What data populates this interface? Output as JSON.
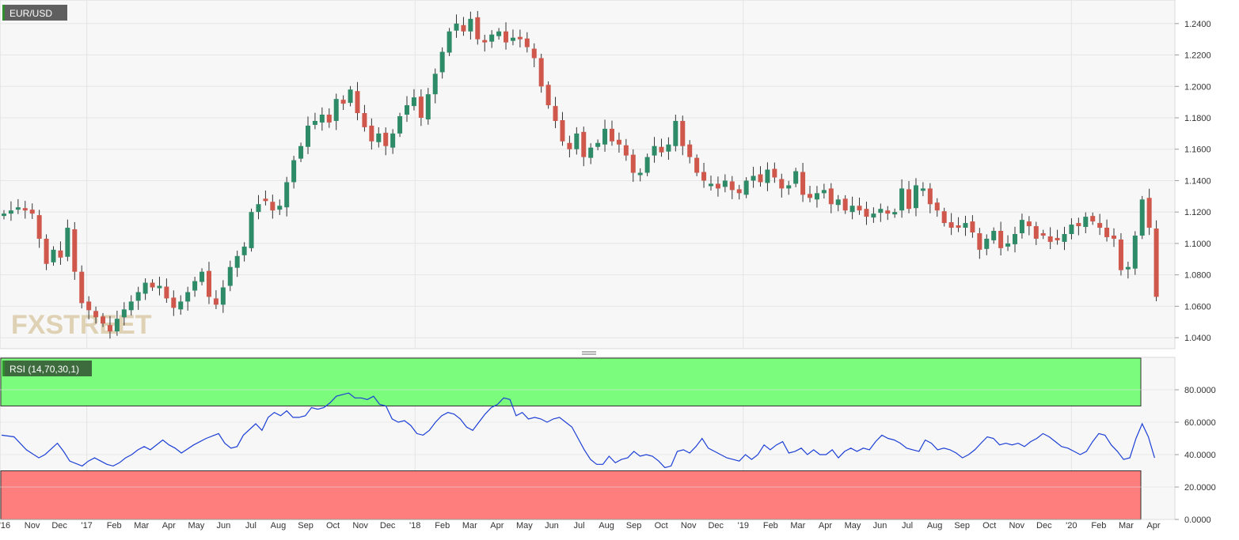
{
  "chart_data": [
    {
      "type": "candlestick",
      "title": "EUR/USD",
      "watermark": "FXSTREET",
      "y_ticks": [
        "1.0400",
        "1.0600",
        "1.0800",
        "1.1000",
        "1.1200",
        "1.1400",
        "1.1600",
        "1.1800",
        "1.2000",
        "1.2200",
        "1.2400"
      ],
      "ylim": [
        1.033,
        1.255
      ],
      "x_tick_labels": [
        "'16",
        "Nov",
        "Dec",
        "'17",
        "Feb",
        "Mar",
        "Apr",
        "May",
        "Jun",
        "Jul",
        "Aug",
        "Sep",
        "Oct",
        "Nov",
        "Dec",
        "'18",
        "Feb",
        "Mar",
        "Apr",
        "May",
        "Jun",
        "Jul",
        "Aug",
        "Sep",
        "Oct",
        "Nov",
        "Dec",
        "'19",
        "Feb",
        "Mar",
        "Apr",
        "May",
        "Jun",
        "Jul",
        "Aug",
        "Sep",
        "Oct",
        "Nov",
        "Dec",
        "'20",
        "Feb",
        "Mar",
        "Apr"
      ],
      "up_color": "#2e8b68",
      "down_color": "#d0574b",
      "close_path": [
        [
          0,
          1.119
        ],
        [
          2,
          1.123
        ],
        [
          4,
          1.119
        ],
        [
          6,
          1.087
        ],
        [
          7,
          1.096
        ],
        [
          8,
          1.091
        ],
        [
          9,
          1.11
        ],
        [
          10,
          1.082
        ],
        [
          11,
          1.062
        ],
        [
          13,
          1.053
        ],
        [
          14,
          1.049
        ],
        [
          15,
          1.044
        ],
        [
          16,
          1.052
        ],
        [
          17,
          1.058
        ],
        [
          18,
          1.063
        ],
        [
          19,
          1.069
        ],
        [
          20,
          1.075
        ],
        [
          21,
          1.072
        ],
        [
          22,
          1.073
        ],
        [
          23,
          1.065
        ],
        [
          24,
          1.059
        ],
        [
          25,
          1.063
        ],
        [
          26,
          1.069
        ],
        [
          27,
          1.076
        ],
        [
          28,
          1.082
        ],
        [
          29,
          1.066
        ],
        [
          30,
          1.061
        ],
        [
          31,
          1.072
        ],
        [
          32,
          1.085
        ],
        [
          33,
          1.092
        ],
        [
          34,
          1.098
        ],
        [
          35,
          1.12
        ],
        [
          36,
          1.125
        ],
        [
          37,
          1.127
        ],
        [
          38,
          1.121
        ],
        [
          39,
          1.124
        ],
        [
          40,
          1.139
        ],
        [
          41,
          1.153
        ],
        [
          42,
          1.162
        ],
        [
          43,
          1.175
        ],
        [
          44,
          1.178
        ],
        [
          45,
          1.182
        ],
        [
          46,
          1.177
        ],
        [
          47,
          1.192
        ],
        [
          48,
          1.189
        ],
        [
          49,
          1.198
        ],
        [
          50,
          1.183
        ],
        [
          51,
          1.174
        ],
        [
          52,
          1.165
        ],
        [
          53,
          1.17
        ],
        [
          54,
          1.162
        ],
        [
          55,
          1.17
        ],
        [
          56,
          1.181
        ],
        [
          57,
          1.188
        ],
        [
          58,
          1.193
        ],
        [
          59,
          1.18
        ],
        [
          60,
          1.195
        ],
        [
          61,
          1.208
        ],
        [
          62,
          1.222
        ],
        [
          63,
          1.235
        ],
        [
          64,
          1.24
        ],
        [
          65,
          1.235
        ],
        [
          66,
          1.243
        ],
        [
          67,
          1.23
        ],
        [
          68,
          1.228
        ],
        [
          69,
          1.233
        ],
        [
          70,
          1.235
        ],
        [
          71,
          1.228
        ],
        [
          72,
          1.231
        ],
        [
          73,
          1.23
        ],
        [
          74,
          1.225
        ],
        [
          75,
          1.218
        ],
        [
          76,
          1.2
        ],
        [
          77,
          1.188
        ],
        [
          78,
          1.178
        ],
        [
          79,
          1.165
        ],
        [
          80,
          1.16
        ],
        [
          81,
          1.17
        ],
        [
          82,
          1.155
        ],
        [
          83,
          1.161
        ],
        [
          84,
          1.164
        ],
        [
          85,
          1.173
        ],
        [
          86,
          1.165
        ],
        [
          87,
          1.163
        ],
        [
          88,
          1.156
        ],
        [
          89,
          1.145
        ],
        [
          90,
          1.145
        ],
        [
          91,
          1.155
        ],
        [
          92,
          1.162
        ],
        [
          93,
          1.158
        ],
        [
          94,
          1.163
        ],
        [
          95,
          1.178
        ],
        [
          96,
          1.162
        ],
        [
          97,
          1.155
        ],
        [
          98,
          1.145
        ],
        [
          99,
          1.14
        ],
        [
          100,
          1.138
        ],
        [
          101,
          1.135
        ],
        [
          102,
          1.14
        ],
        [
          103,
          1.134
        ],
        [
          104,
          1.132
        ],
        [
          105,
          1.14
        ],
        [
          106,
          1.143
        ],
        [
          107,
          1.139
        ],
        [
          108,
          1.147
        ],
        [
          109,
          1.142
        ],
        [
          110,
          1.135
        ],
        [
          111,
          1.137
        ],
        [
          112,
          1.146
        ],
        [
          113,
          1.131
        ],
        [
          114,
          1.129
        ],
        [
          115,
          1.132
        ],
        [
          116,
          1.134
        ],
        [
          117,
          1.125
        ],
        [
          118,
          1.128
        ],
        [
          119,
          1.121
        ],
        [
          120,
          1.124
        ],
        [
          121,
          1.121
        ],
        [
          122,
          1.117
        ],
        [
          123,
          1.119
        ],
        [
          124,
          1.122
        ],
        [
          125,
          1.119
        ],
        [
          126,
          1.12
        ],
        [
          127,
          1.135
        ],
        [
          128,
          1.122
        ],
        [
          129,
          1.137
        ],
        [
          130,
          1.135
        ],
        [
          131,
          1.125
        ],
        [
          132,
          1.121
        ],
        [
          133,
          1.113
        ],
        [
          134,
          1.11
        ],
        [
          135,
          1.11
        ],
        [
          136,
          1.113
        ],
        [
          137,
          1.107
        ],
        [
          138,
          1.096
        ],
        [
          139,
          1.103
        ],
        [
          140,
          1.108
        ],
        [
          141,
          1.097
        ],
        [
          142,
          1.1
        ],
        [
          143,
          1.106
        ],
        [
          144,
          1.115
        ],
        [
          145,
          1.111
        ],
        [
          146,
          1.103
        ],
        [
          147,
          1.105
        ],
        [
          148,
          1.101
        ],
        [
          149,
          1.102
        ],
        [
          150,
          1.106
        ],
        [
          151,
          1.112
        ],
        [
          152,
          1.111
        ],
        [
          153,
          1.117
        ],
        [
          154,
          1.114
        ],
        [
          155,
          1.11
        ],
        [
          156,
          1.104
        ],
        [
          157,
          1.103
        ],
        [
          158,
          1.083
        ],
        [
          159,
          1.085
        ],
        [
          160,
          1.105
        ],
        [
          161,
          1.128
        ],
        [
          162,
          1.11
        ],
        [
          163,
          1.066
        ]
      ],
      "pane_sizes": [
        1,
        0.46
      ]
    },
    {
      "type": "line",
      "legend": "RSI (14,70,30,1)",
      "y_ticks": [
        "0.0000",
        "20.0000",
        "40.0000",
        "60.0000",
        "80.0000"
      ],
      "ylim": [
        0,
        100
      ],
      "overbought": 70,
      "oversold": 30,
      "overbought_color": "#7cfc7c",
      "oversold_color": "#fe7d7d",
      "line_color": "#1c3fd6",
      "values_path": [
        [
          0,
          52
        ],
        [
          2,
          51
        ],
        [
          4,
          43
        ],
        [
          6,
          38
        ],
        [
          7,
          40
        ],
        [
          9,
          47
        ],
        [
          10,
          42
        ],
        [
          11,
          36
        ],
        [
          13,
          33
        ],
        [
          14,
          36
        ],
        [
          15,
          38
        ],
        [
          16,
          36
        ],
        [
          17,
          34
        ],
        [
          18,
          33
        ],
        [
          19,
          35
        ],
        [
          20,
          38
        ],
        [
          21,
          40
        ],
        [
          22,
          43
        ],
        [
          23,
          45
        ],
        [
          24,
          43
        ],
        [
          26,
          49
        ],
        [
          27,
          46
        ],
        [
          28,
          44
        ],
        [
          29,
          41
        ],
        [
          31,
          46
        ],
        [
          33,
          50
        ],
        [
          35,
          53
        ],
        [
          36,
          47
        ],
        [
          37,
          44
        ],
        [
          38,
          45
        ],
        [
          39,
          52
        ],
        [
          41,
          59
        ],
        [
          42,
          55
        ],
        [
          43,
          63
        ],
        [
          44,
          66
        ],
        [
          45,
          64
        ],
        [
          46,
          67
        ],
        [
          47,
          63
        ],
        [
          48,
          63
        ],
        [
          49,
          64
        ],
        [
          50,
          69
        ],
        [
          51,
          68
        ],
        [
          52,
          69
        ],
        [
          53,
          72
        ],
        [
          54,
          76
        ],
        [
          55,
          77
        ],
        [
          56,
          78
        ],
        [
          57,
          75
        ],
        [
          58,
          75
        ],
        [
          59,
          74
        ],
        [
          60,
          76
        ],
        [
          61,
          71
        ],
        [
          62,
          70
        ],
        [
          63,
          62
        ],
        [
          64,
          60
        ],
        [
          65,
          61
        ],
        [
          66,
          58
        ],
        [
          67,
          53
        ],
        [
          68,
          52
        ],
        [
          69,
          55
        ],
        [
          70,
          60
        ],
        [
          71,
          64
        ],
        [
          72,
          66
        ],
        [
          73,
          65
        ],
        [
          74,
          62
        ],
        [
          75,
          57
        ],
        [
          76,
          55
        ],
        [
          77,
          60
        ],
        [
          78,
          65
        ],
        [
          79,
          69
        ],
        [
          80,
          71
        ],
        [
          81,
          75
        ],
        [
          82,
          74
        ],
        [
          83,
          64
        ],
        [
          84,
          66
        ],
        [
          85,
          62
        ],
        [
          86,
          63
        ],
        [
          87,
          62
        ],
        [
          88,
          60
        ],
        [
          89,
          62
        ],
        [
          90,
          63
        ],
        [
          91,
          60
        ],
        [
          92,
          57
        ],
        [
          93,
          50
        ],
        [
          94,
          43
        ],
        [
          95,
          37
        ],
        [
          96,
          34
        ],
        [
          97,
          34
        ],
        [
          98,
          39
        ],
        [
          99,
          35
        ],
        [
          100,
          37
        ],
        [
          101,
          38
        ],
        [
          102,
          42
        ],
        [
          103,
          39
        ],
        [
          104,
          40
        ],
        [
          105,
          39
        ],
        [
          106,
          36
        ],
        [
          107,
          32
        ],
        [
          108,
          33
        ],
        [
          109,
          42
        ],
        [
          110,
          43
        ],
        [
          111,
          41
        ],
        [
          112,
          45
        ],
        [
          113,
          50
        ],
        [
          114,
          44
        ],
        [
          115,
          42
        ],
        [
          116,
          40
        ],
        [
          117,
          38
        ],
        [
          118,
          37
        ],
        [
          119,
          36
        ],
        [
          120,
          40
        ],
        [
          121,
          37
        ],
        [
          122,
          40
        ],
        [
          123,
          46
        ],
        [
          124,
          43
        ],
        [
          125,
          46
        ],
        [
          126,
          48
        ],
        [
          127,
          41
        ],
        [
          128,
          42
        ],
        [
          129,
          44
        ],
        [
          130,
          40
        ],
        [
          131,
          43
        ],
        [
          132,
          40
        ],
        [
          133,
          40
        ],
        [
          134,
          43
        ],
        [
          135,
          38
        ],
        [
          136,
          42
        ],
        [
          137,
          44
        ],
        [
          138,
          42
        ],
        [
          139,
          44
        ],
        [
          140,
          43
        ],
        [
          141,
          48
        ],
        [
          142,
          52
        ],
        [
          143,
          50
        ],
        [
          144,
          49
        ],
        [
          145,
          47
        ],
        [
          146,
          44
        ],
        [
          147,
          43
        ],
        [
          148,
          42
        ],
        [
          149,
          49
        ],
        [
          150,
          47
        ],
        [
          151,
          43
        ],
        [
          152,
          44
        ],
        [
          153,
          43
        ],
        [
          154,
          41
        ],
        [
          155,
          38
        ],
        [
          156,
          40
        ],
        [
          157,
          43
        ],
        [
          158,
          47
        ],
        [
          159,
          51
        ],
        [
          160,
          50
        ],
        [
          161,
          46
        ],
        [
          162,
          47
        ],
        [
          163,
          46
        ],
        [
          164,
          47
        ],
        [
          165,
          45
        ],
        [
          166,
          48
        ],
        [
          167,
          50
        ],
        [
          168,
          53
        ],
        [
          169,
          51
        ],
        [
          170,
          48
        ],
        [
          171,
          45
        ],
        [
          172,
          44
        ],
        [
          173,
          42
        ],
        [
          174,
          40
        ],
        [
          175,
          42
        ],
        [
          176,
          48
        ],
        [
          177,
          53
        ],
        [
          178,
          52
        ],
        [
          179,
          46
        ],
        [
          180,
          42
        ],
        [
          181,
          37
        ],
        [
          182,
          38
        ],
        [
          183,
          50
        ],
        [
          184,
          59
        ],
        [
          185,
          51
        ],
        [
          186,
          38
        ]
      ]
    }
  ]
}
